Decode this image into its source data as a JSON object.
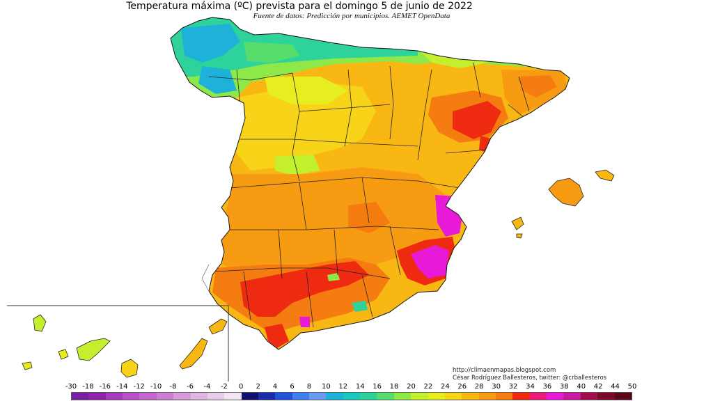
{
  "map": {
    "title": "Temperatura máxima (ºC) prevista para el domingo 5 de junio de 2022",
    "subtitle": "Fuente de datos: Predicción por municipios. AEMET OpenData",
    "credits": {
      "url": "http://climaenmapas.blogspot.com",
      "author": "César Rodríguez Ballesteros, twitter: @crballesteros"
    }
  },
  "legend": {
    "labels": [
      "-30",
      "-18",
      "-16",
      "-14",
      "-12",
      "-10",
      "-8",
      "-6",
      "-4",
      "-2",
      "0",
      "2",
      "4",
      "6",
      "8",
      "10",
      "12",
      "14",
      "16",
      "18",
      "20",
      "22",
      "24",
      "26",
      "28",
      "30",
      "32",
      "34",
      "36",
      "38",
      "40",
      "42",
      "44",
      "50"
    ],
    "colors": [
      "#7b1fa2",
      "#8e24aa",
      "#a43bbd",
      "#b84fc9",
      "#c468cf",
      "#cd7fd3",
      "#d69bd8",
      "#e0b5e0",
      "#e8cde8",
      "#f3e6f3",
      "#10106e",
      "#1a2ca8",
      "#2253d8",
      "#3f7fee",
      "#6a9bf2",
      "#1fb2d8",
      "#1cc7c0",
      "#2ed39c",
      "#57dd6c",
      "#8ee848",
      "#c4ef2e",
      "#e7ee1f",
      "#f7d417",
      "#f9b714",
      "#f79b12",
      "#f57c10",
      "#ee2b10",
      "#ee1a7a",
      "#e81ad8",
      "#c81aa0",
      "#a01050",
      "#7a0a2a",
      "#5a0818"
    ]
  }
}
